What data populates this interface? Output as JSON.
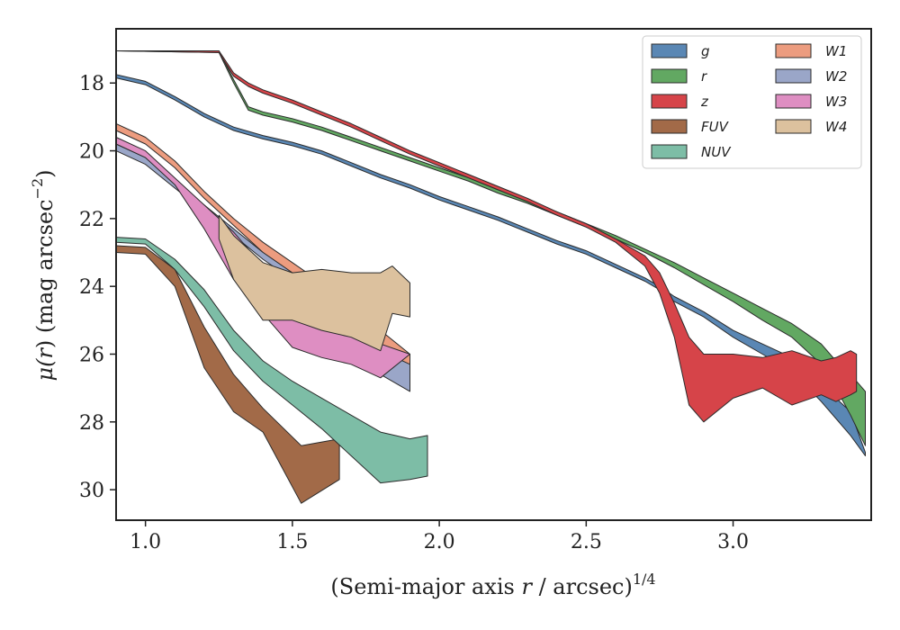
{
  "chart_data": {
    "type": "area",
    "title": "",
    "xlabel": "(Semi-major axis r / arcsec)^{1/4}",
    "xlabel_parts": {
      "pre": "(Semi-major axis ",
      "var": "r",
      "mid": " / arcsec)",
      "sup": "1/4"
    },
    "ylabel": "μ(r) (mag arcsec^-2)",
    "ylabel_parts": {
      "mu": "μ(",
      "var": "r",
      "close": ") (mag arcsec",
      "sup": "−2",
      "end": ")"
    },
    "xlim": [
      0.9,
      3.47
    ],
    "ylim": [
      30.9,
      16.4
    ],
    "y_inverted": true,
    "x_ticks": [
      1.0,
      1.5,
      2.0,
      2.5,
      3.0
    ],
    "x_tick_labels": [
      "1.0",
      "1.5",
      "2.0",
      "2.5",
      "3.0"
    ],
    "y_ticks": [
      18,
      20,
      22,
      24,
      26,
      28,
      30
    ],
    "y_tick_labels": [
      "18",
      "20",
      "22",
      "24",
      "26",
      "28",
      "30"
    ],
    "grid": false,
    "legend_position": "top-right",
    "legend_columns": 2,
    "series": [
      {
        "name": "g",
        "color": "#5a87b4",
        "upper": [
          [
            0.9,
            17.75
          ],
          [
            1.0,
            17.95
          ],
          [
            1.1,
            18.4
          ],
          [
            1.2,
            18.9
          ],
          [
            1.3,
            19.3
          ],
          [
            1.4,
            19.55
          ],
          [
            1.5,
            19.75
          ],
          [
            1.6,
            20.0
          ],
          [
            1.7,
            20.35
          ],
          [
            1.8,
            20.7
          ],
          [
            1.9,
            21.0
          ],
          [
            2.0,
            21.35
          ],
          [
            2.1,
            21.65
          ],
          [
            2.2,
            21.95
          ],
          [
            2.3,
            22.3
          ],
          [
            2.4,
            22.65
          ],
          [
            2.5,
            22.95
          ],
          [
            2.6,
            23.35
          ],
          [
            2.7,
            23.75
          ],
          [
            2.75,
            24.0
          ],
          [
            2.8,
            24.3
          ],
          [
            2.9,
            24.75
          ],
          [
            3.0,
            25.3
          ],
          [
            3.1,
            25.7
          ],
          [
            3.2,
            26.1
          ],
          [
            3.3,
            26.8
          ],
          [
            3.35,
            27.3
          ],
          [
            3.4,
            27.7
          ],
          [
            3.45,
            28.9
          ]
        ],
        "lower": [
          [
            0.9,
            17.85
          ],
          [
            1.0,
            18.05
          ],
          [
            1.1,
            18.5
          ],
          [
            1.2,
            19.0
          ],
          [
            1.3,
            19.4
          ],
          [
            1.4,
            19.65
          ],
          [
            1.5,
            19.85
          ],
          [
            1.6,
            20.1
          ],
          [
            1.7,
            20.45
          ],
          [
            1.8,
            20.8
          ],
          [
            1.9,
            21.1
          ],
          [
            2.0,
            21.45
          ],
          [
            2.1,
            21.75
          ],
          [
            2.2,
            22.05
          ],
          [
            2.3,
            22.4
          ],
          [
            2.4,
            22.75
          ],
          [
            2.5,
            23.05
          ],
          [
            2.6,
            23.45
          ],
          [
            2.7,
            23.85
          ],
          [
            2.75,
            24.1
          ],
          [
            2.8,
            24.45
          ],
          [
            2.9,
            24.9
          ],
          [
            3.0,
            25.5
          ],
          [
            3.1,
            26.0
          ],
          [
            3.2,
            26.5
          ],
          [
            3.3,
            27.4
          ],
          [
            3.35,
            27.9
          ],
          [
            3.4,
            28.4
          ],
          [
            3.45,
            29.0
          ]
        ]
      },
      {
        "name": "r",
        "color": "#62a862",
        "upper": [
          [
            0.9,
            17.05
          ],
          [
            1.25,
            17.05
          ],
          [
            1.3,
            17.9
          ],
          [
            1.35,
            18.7
          ],
          [
            1.4,
            18.85
          ],
          [
            1.5,
            19.05
          ],
          [
            1.6,
            19.3
          ],
          [
            1.7,
            19.6
          ],
          [
            1.8,
            19.9
          ],
          [
            1.9,
            20.2
          ],
          [
            2.0,
            20.5
          ],
          [
            2.1,
            20.8
          ],
          [
            2.2,
            21.15
          ],
          [
            2.3,
            21.45
          ],
          [
            2.4,
            21.8
          ],
          [
            2.5,
            22.15
          ],
          [
            2.6,
            22.5
          ],
          [
            2.7,
            22.9
          ],
          [
            2.8,
            23.3
          ],
          [
            2.9,
            23.75
          ],
          [
            3.0,
            24.2
          ],
          [
            3.1,
            24.65
          ],
          [
            3.2,
            25.1
          ],
          [
            3.3,
            25.7
          ],
          [
            3.35,
            26.2
          ],
          [
            3.4,
            26.6
          ],
          [
            3.45,
            27.1
          ]
        ],
        "lower": [
          [
            0.9,
            17.05
          ],
          [
            1.25,
            17.1
          ],
          [
            1.3,
            18.0
          ],
          [
            1.35,
            18.8
          ],
          [
            1.4,
            18.95
          ],
          [
            1.5,
            19.15
          ],
          [
            1.6,
            19.4
          ],
          [
            1.7,
            19.7
          ],
          [
            1.8,
            20.0
          ],
          [
            1.9,
            20.3
          ],
          [
            2.0,
            20.6
          ],
          [
            2.1,
            20.9
          ],
          [
            2.2,
            21.25
          ],
          [
            2.3,
            21.55
          ],
          [
            2.4,
            21.9
          ],
          [
            2.5,
            22.25
          ],
          [
            2.6,
            22.6
          ],
          [
            2.7,
            23.0
          ],
          [
            2.8,
            23.45
          ],
          [
            2.9,
            23.95
          ],
          [
            3.0,
            24.45
          ],
          [
            3.1,
            25.0
          ],
          [
            3.2,
            25.5
          ],
          [
            3.3,
            26.3
          ],
          [
            3.35,
            27.0
          ],
          [
            3.4,
            27.8
          ],
          [
            3.45,
            28.7
          ]
        ]
      },
      {
        "name": "z",
        "color": "#d64449",
        "upper": [
          [
            0.9,
            17.05
          ],
          [
            1.25,
            17.05
          ],
          [
            1.3,
            17.7
          ],
          [
            1.35,
            18.0
          ],
          [
            1.4,
            18.2
          ],
          [
            1.5,
            18.5
          ],
          [
            1.6,
            18.85
          ],
          [
            1.7,
            19.2
          ],
          [
            1.8,
            19.6
          ],
          [
            1.9,
            20.0
          ],
          [
            2.0,
            20.35
          ],
          [
            2.1,
            20.7
          ],
          [
            2.2,
            21.05
          ],
          [
            2.3,
            21.4
          ],
          [
            2.4,
            21.8
          ],
          [
            2.5,
            22.15
          ],
          [
            2.6,
            22.6
          ],
          [
            2.7,
            23.1
          ],
          [
            2.75,
            23.6
          ],
          [
            2.8,
            24.5
          ],
          [
            2.85,
            25.5
          ],
          [
            2.9,
            26.0
          ],
          [
            3.0,
            26.0
          ],
          [
            3.1,
            26.1
          ],
          [
            3.2,
            25.9
          ],
          [
            3.3,
            26.2
          ],
          [
            3.35,
            26.1
          ],
          [
            3.4,
            25.9
          ],
          [
            3.42,
            26.0
          ]
        ],
        "lower": [
          [
            0.9,
            17.05
          ],
          [
            1.25,
            17.1
          ],
          [
            1.3,
            17.8
          ],
          [
            1.35,
            18.1
          ],
          [
            1.4,
            18.3
          ],
          [
            1.5,
            18.6
          ],
          [
            1.6,
            18.95
          ],
          [
            1.7,
            19.3
          ],
          [
            1.8,
            19.7
          ],
          [
            1.9,
            20.1
          ],
          [
            2.0,
            20.45
          ],
          [
            2.1,
            20.8
          ],
          [
            2.2,
            21.15
          ],
          [
            2.3,
            21.5
          ],
          [
            2.4,
            21.9
          ],
          [
            2.5,
            22.25
          ],
          [
            2.6,
            22.7
          ],
          [
            2.7,
            23.4
          ],
          [
            2.75,
            24.2
          ],
          [
            2.8,
            25.5
          ],
          [
            2.85,
            27.5
          ],
          [
            2.9,
            28.0
          ],
          [
            3.0,
            27.3
          ],
          [
            3.1,
            27.0
          ],
          [
            3.2,
            27.5
          ],
          [
            3.3,
            27.2
          ],
          [
            3.35,
            27.4
          ],
          [
            3.4,
            27.2
          ],
          [
            3.42,
            27.1
          ]
        ]
      },
      {
        "name": "FUV",
        "color": "#a26a48",
        "upper": [
          [
            0.9,
            22.8
          ],
          [
            1.0,
            22.85
          ],
          [
            1.1,
            23.5
          ],
          [
            1.2,
            25.2
          ],
          [
            1.3,
            26.6
          ],
          [
            1.4,
            27.6
          ],
          [
            1.53,
            28.7
          ],
          [
            1.66,
            28.5
          ]
        ],
        "lower": [
          [
            0.9,
            23.0
          ],
          [
            1.0,
            23.05
          ],
          [
            1.1,
            24.0
          ],
          [
            1.2,
            26.4
          ],
          [
            1.3,
            27.7
          ],
          [
            1.4,
            28.3
          ],
          [
            1.53,
            30.4
          ],
          [
            1.66,
            29.7
          ]
        ]
      },
      {
        "name": "NUV",
        "color": "#7dbda6",
        "upper": [
          [
            0.9,
            22.55
          ],
          [
            1.0,
            22.6
          ],
          [
            1.1,
            23.2
          ],
          [
            1.2,
            24.1
          ],
          [
            1.3,
            25.3
          ],
          [
            1.4,
            26.2
          ],
          [
            1.5,
            26.8
          ],
          [
            1.6,
            27.3
          ],
          [
            1.7,
            27.8
          ],
          [
            1.8,
            28.3
          ],
          [
            1.9,
            28.5
          ],
          [
            1.96,
            28.4
          ]
        ],
        "lower": [
          [
            0.9,
            22.7
          ],
          [
            1.0,
            22.75
          ],
          [
            1.1,
            23.5
          ],
          [
            1.2,
            24.6
          ],
          [
            1.3,
            25.9
          ],
          [
            1.4,
            26.8
          ],
          [
            1.5,
            27.5
          ],
          [
            1.6,
            28.2
          ],
          [
            1.7,
            29.0
          ],
          [
            1.8,
            29.8
          ],
          [
            1.9,
            29.7
          ],
          [
            1.96,
            29.6
          ]
        ]
      },
      {
        "name": "W1",
        "color": "#ec9c7f",
        "upper": [
          [
            0.9,
            19.2
          ],
          [
            1.0,
            19.6
          ],
          [
            1.1,
            20.3
          ],
          [
            1.2,
            21.2
          ],
          [
            1.3,
            22.0
          ],
          [
            1.4,
            22.7
          ],
          [
            1.5,
            23.3
          ],
          [
            1.6,
            23.9
          ],
          [
            1.7,
            24.4
          ],
          [
            1.8,
            25.3
          ],
          [
            1.9,
            26.0
          ]
        ],
        "lower": [
          [
            0.9,
            19.4
          ],
          [
            1.0,
            19.8
          ],
          [
            1.1,
            20.5
          ],
          [
            1.2,
            21.4
          ],
          [
            1.3,
            22.2
          ],
          [
            1.4,
            23.0
          ],
          [
            1.5,
            23.6
          ],
          [
            1.6,
            24.2
          ],
          [
            1.7,
            24.8
          ],
          [
            1.8,
            25.9
          ],
          [
            1.9,
            26.5
          ]
        ]
      },
      {
        "name": "W2",
        "color": "#9aa6c8",
        "upper": [
          [
            0.9,
            19.8
          ],
          [
            1.0,
            20.2
          ],
          [
            1.1,
            20.9
          ],
          [
            1.2,
            21.6
          ],
          [
            1.3,
            22.3
          ],
          [
            1.4,
            23.0
          ],
          [
            1.5,
            23.6
          ],
          [
            1.6,
            24.2
          ],
          [
            1.7,
            24.8
          ],
          [
            1.8,
            25.9
          ],
          [
            1.9,
            26.3
          ]
        ],
        "lower": [
          [
            0.9,
            20.0
          ],
          [
            1.0,
            20.4
          ],
          [
            1.1,
            21.1
          ],
          [
            1.2,
            21.8
          ],
          [
            1.3,
            22.5
          ],
          [
            1.4,
            23.2
          ],
          [
            1.5,
            23.8
          ],
          [
            1.6,
            24.4
          ],
          [
            1.7,
            25.0
          ],
          [
            1.8,
            26.6
          ],
          [
            1.9,
            27.1
          ]
        ]
      },
      {
        "name": "W3",
        "color": "#de8ec2",
        "upper": [
          [
            0.9,
            19.6
          ],
          [
            1.0,
            20.0
          ],
          [
            1.1,
            20.8
          ],
          [
            1.2,
            21.6
          ],
          [
            1.3,
            22.4
          ],
          [
            1.4,
            23.4
          ],
          [
            1.5,
            24.0
          ],
          [
            1.6,
            24.8
          ],
          [
            1.7,
            25.2
          ],
          [
            1.8,
            25.7
          ],
          [
            1.9,
            26.0
          ]
        ],
        "lower": [
          [
            0.9,
            19.8
          ],
          [
            1.0,
            20.2
          ],
          [
            1.1,
            21.0
          ],
          [
            1.2,
            22.3
          ],
          [
            1.3,
            23.8
          ],
          [
            1.4,
            24.8
          ],
          [
            1.5,
            25.8
          ],
          [
            1.6,
            26.1
          ],
          [
            1.7,
            26.3
          ],
          [
            1.8,
            26.7
          ],
          [
            1.9,
            26.0
          ]
        ]
      },
      {
        "name": "W4",
        "color": "#dcc19e",
        "upper": [
          [
            1.25,
            21.9
          ],
          [
            1.3,
            22.5
          ],
          [
            1.4,
            23.3
          ],
          [
            1.5,
            23.6
          ],
          [
            1.6,
            23.5
          ],
          [
            1.7,
            23.6
          ],
          [
            1.8,
            23.6
          ],
          [
            1.84,
            23.4
          ],
          [
            1.9,
            23.9
          ]
        ],
        "lower": [
          [
            1.25,
            22.6
          ],
          [
            1.3,
            23.8
          ],
          [
            1.4,
            25.0
          ],
          [
            1.5,
            25.0
          ],
          [
            1.6,
            25.3
          ],
          [
            1.7,
            25.5
          ],
          [
            1.8,
            25.9
          ],
          [
            1.84,
            24.8
          ],
          [
            1.9,
            24.9
          ]
        ]
      }
    ],
    "legend_entries": [
      "g",
      "r",
      "z",
      "FUV",
      "NUV",
      "W1",
      "W2",
      "W3",
      "W4"
    ]
  }
}
